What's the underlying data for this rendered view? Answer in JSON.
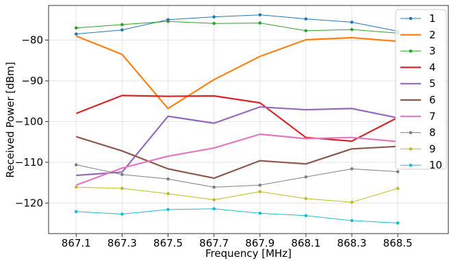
{
  "chart_data": {
    "type": "line",
    "title": "",
    "xlabel": "Frequency [MHz]",
    "ylabel": "Received Power [dBm]",
    "x": [
      867.1,
      867.3,
      867.5,
      867.7,
      867.9,
      868.1,
      868.3,
      868.5
    ],
    "x_tick_labels": [
      "867.1",
      "867.3",
      "867.5",
      "867.7",
      "867.9",
      "868.1",
      "868.3",
      "868.5"
    ],
    "y_ticks": [
      -80,
      -90,
      -100,
      -110,
      -120
    ],
    "y_tick_labels": [
      "−80",
      "−90",
      "−100",
      "−110",
      "−120"
    ],
    "xlim": [
      866.98,
      868.72
    ],
    "ylim": [
      -127.5,
      -71.5
    ],
    "grid": true,
    "legend_position": "top-right",
    "series": [
      {
        "name": "1",
        "color": "#1f77b4",
        "marker": true,
        "width": 1,
        "values": [
          -78.5,
          -77.5,
          -75.0,
          -74.3,
          -73.8,
          -74.8,
          -75.6,
          -77.8
        ]
      },
      {
        "name": "2",
        "color": "#ff7f0e",
        "marker": false,
        "width": 2.2,
        "values": [
          -79.0,
          -83.5,
          -96.8,
          -89.7,
          -84.0,
          -79.9,
          -79.4,
          -80.3
        ]
      },
      {
        "name": "3",
        "color": "#2ca02c",
        "marker": true,
        "width": 1,
        "values": [
          -77.0,
          -76.2,
          -75.4,
          -75.9,
          -75.8,
          -77.7,
          -77.4,
          -78.3
        ]
      },
      {
        "name": "4",
        "color": "#d62728",
        "marker": false,
        "width": 2.2,
        "values": [
          -98.0,
          -93.6,
          -93.8,
          -93.7,
          -95.4,
          -103.9,
          -104.8,
          -99.0
        ]
      },
      {
        "name": "5",
        "color": "#9467bd",
        "marker": false,
        "width": 2.2,
        "values": [
          -113.2,
          -112.4,
          -98.7,
          -100.4,
          -96.4,
          -97.1,
          -96.8,
          -99.1
        ]
      },
      {
        "name": "6",
        "color": "#8c564b",
        "marker": false,
        "width": 2.2,
        "values": [
          -103.7,
          -107.2,
          -111.6,
          -113.9,
          -109.6,
          -110.4,
          -106.7,
          -106.1
        ]
      },
      {
        "name": "7",
        "color": "#e377c2",
        "marker": false,
        "width": 2.2,
        "values": [
          -115.6,
          -111.4,
          -108.5,
          -106.5,
          -103.1,
          -104.2,
          -103.9,
          -104.9
        ]
      },
      {
        "name": "8",
        "color": "#7f7f7f",
        "marker": true,
        "width": 1,
        "values": [
          -110.6,
          -113.0,
          -114.1,
          -116.1,
          -115.6,
          -113.6,
          -111.6,
          -112.3
        ]
      },
      {
        "name": "9",
        "color": "#bcbd22",
        "marker": true,
        "width": 1,
        "values": [
          -116.1,
          -116.4,
          -117.7,
          -119.2,
          -117.2,
          -118.9,
          -119.8,
          -116.4
        ]
      },
      {
        "name": "10",
        "color": "#17becf",
        "marker": true,
        "width": 1,
        "values": [
          -122.1,
          -122.7,
          -121.6,
          -121.4,
          -122.5,
          -123.1,
          -124.3,
          -124.9
        ]
      }
    ]
  }
}
